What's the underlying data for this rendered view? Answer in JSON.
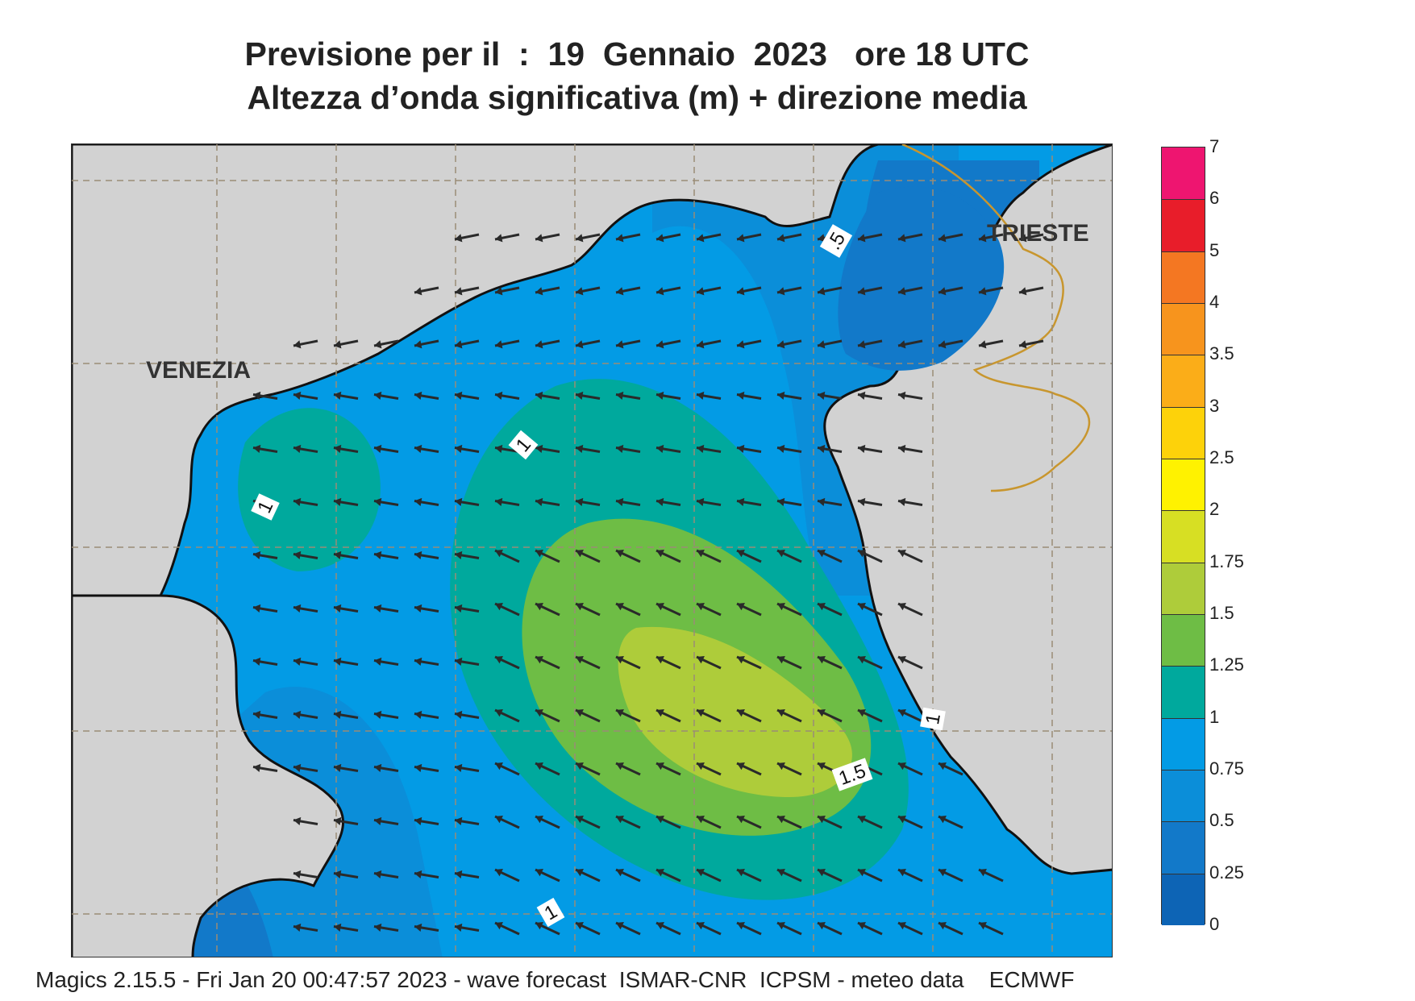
{
  "title": {
    "line1": "Previsione per il  :  19  Gennaio  2023   ore 18 UTC",
    "line2": "Altezza d’onda significativa (m) + direzione media"
  },
  "map": {
    "cities": [
      {
        "name": "VENEZIA"
      },
      {
        "name": "TRIESTE"
      }
    ],
    "contour_labels": [
      "1",
      "1",
      ".5",
      "1",
      "1.5",
      "1"
    ],
    "land_color": "#d2d2d2",
    "coast_color": "#111111",
    "border_color": "#c8962e",
    "grid_color": "#9a8c76",
    "arrow_color": "#2a2a2a"
  },
  "colorbar": {
    "labels": [
      "7",
      "6",
      "5",
      "4",
      "3.5",
      "3",
      "2.5",
      "2",
      "1.75",
      "1.5",
      "1.25",
      "1",
      "0.75",
      "0.5",
      "0.25",
      "0"
    ],
    "colors": [
      "#ee1570",
      "#e81d2a",
      "#f47722",
      "#f7941d",
      "#fbad18",
      "#fdd20a",
      "#fff200",
      "#d7df23",
      "#aecc3a",
      "#6ebd45",
      "#00a99d",
      "#039be5",
      "#0b8ed9",
      "#1279c9",
      "#0d64b5"
    ]
  },
  "footer": {
    "text": "Magics 2.15.5 - Fri Jan 20 00:47:57 2023 - wave forecast  ISMAR-CNR  ICPSM - meteo data    ECMWF"
  }
}
